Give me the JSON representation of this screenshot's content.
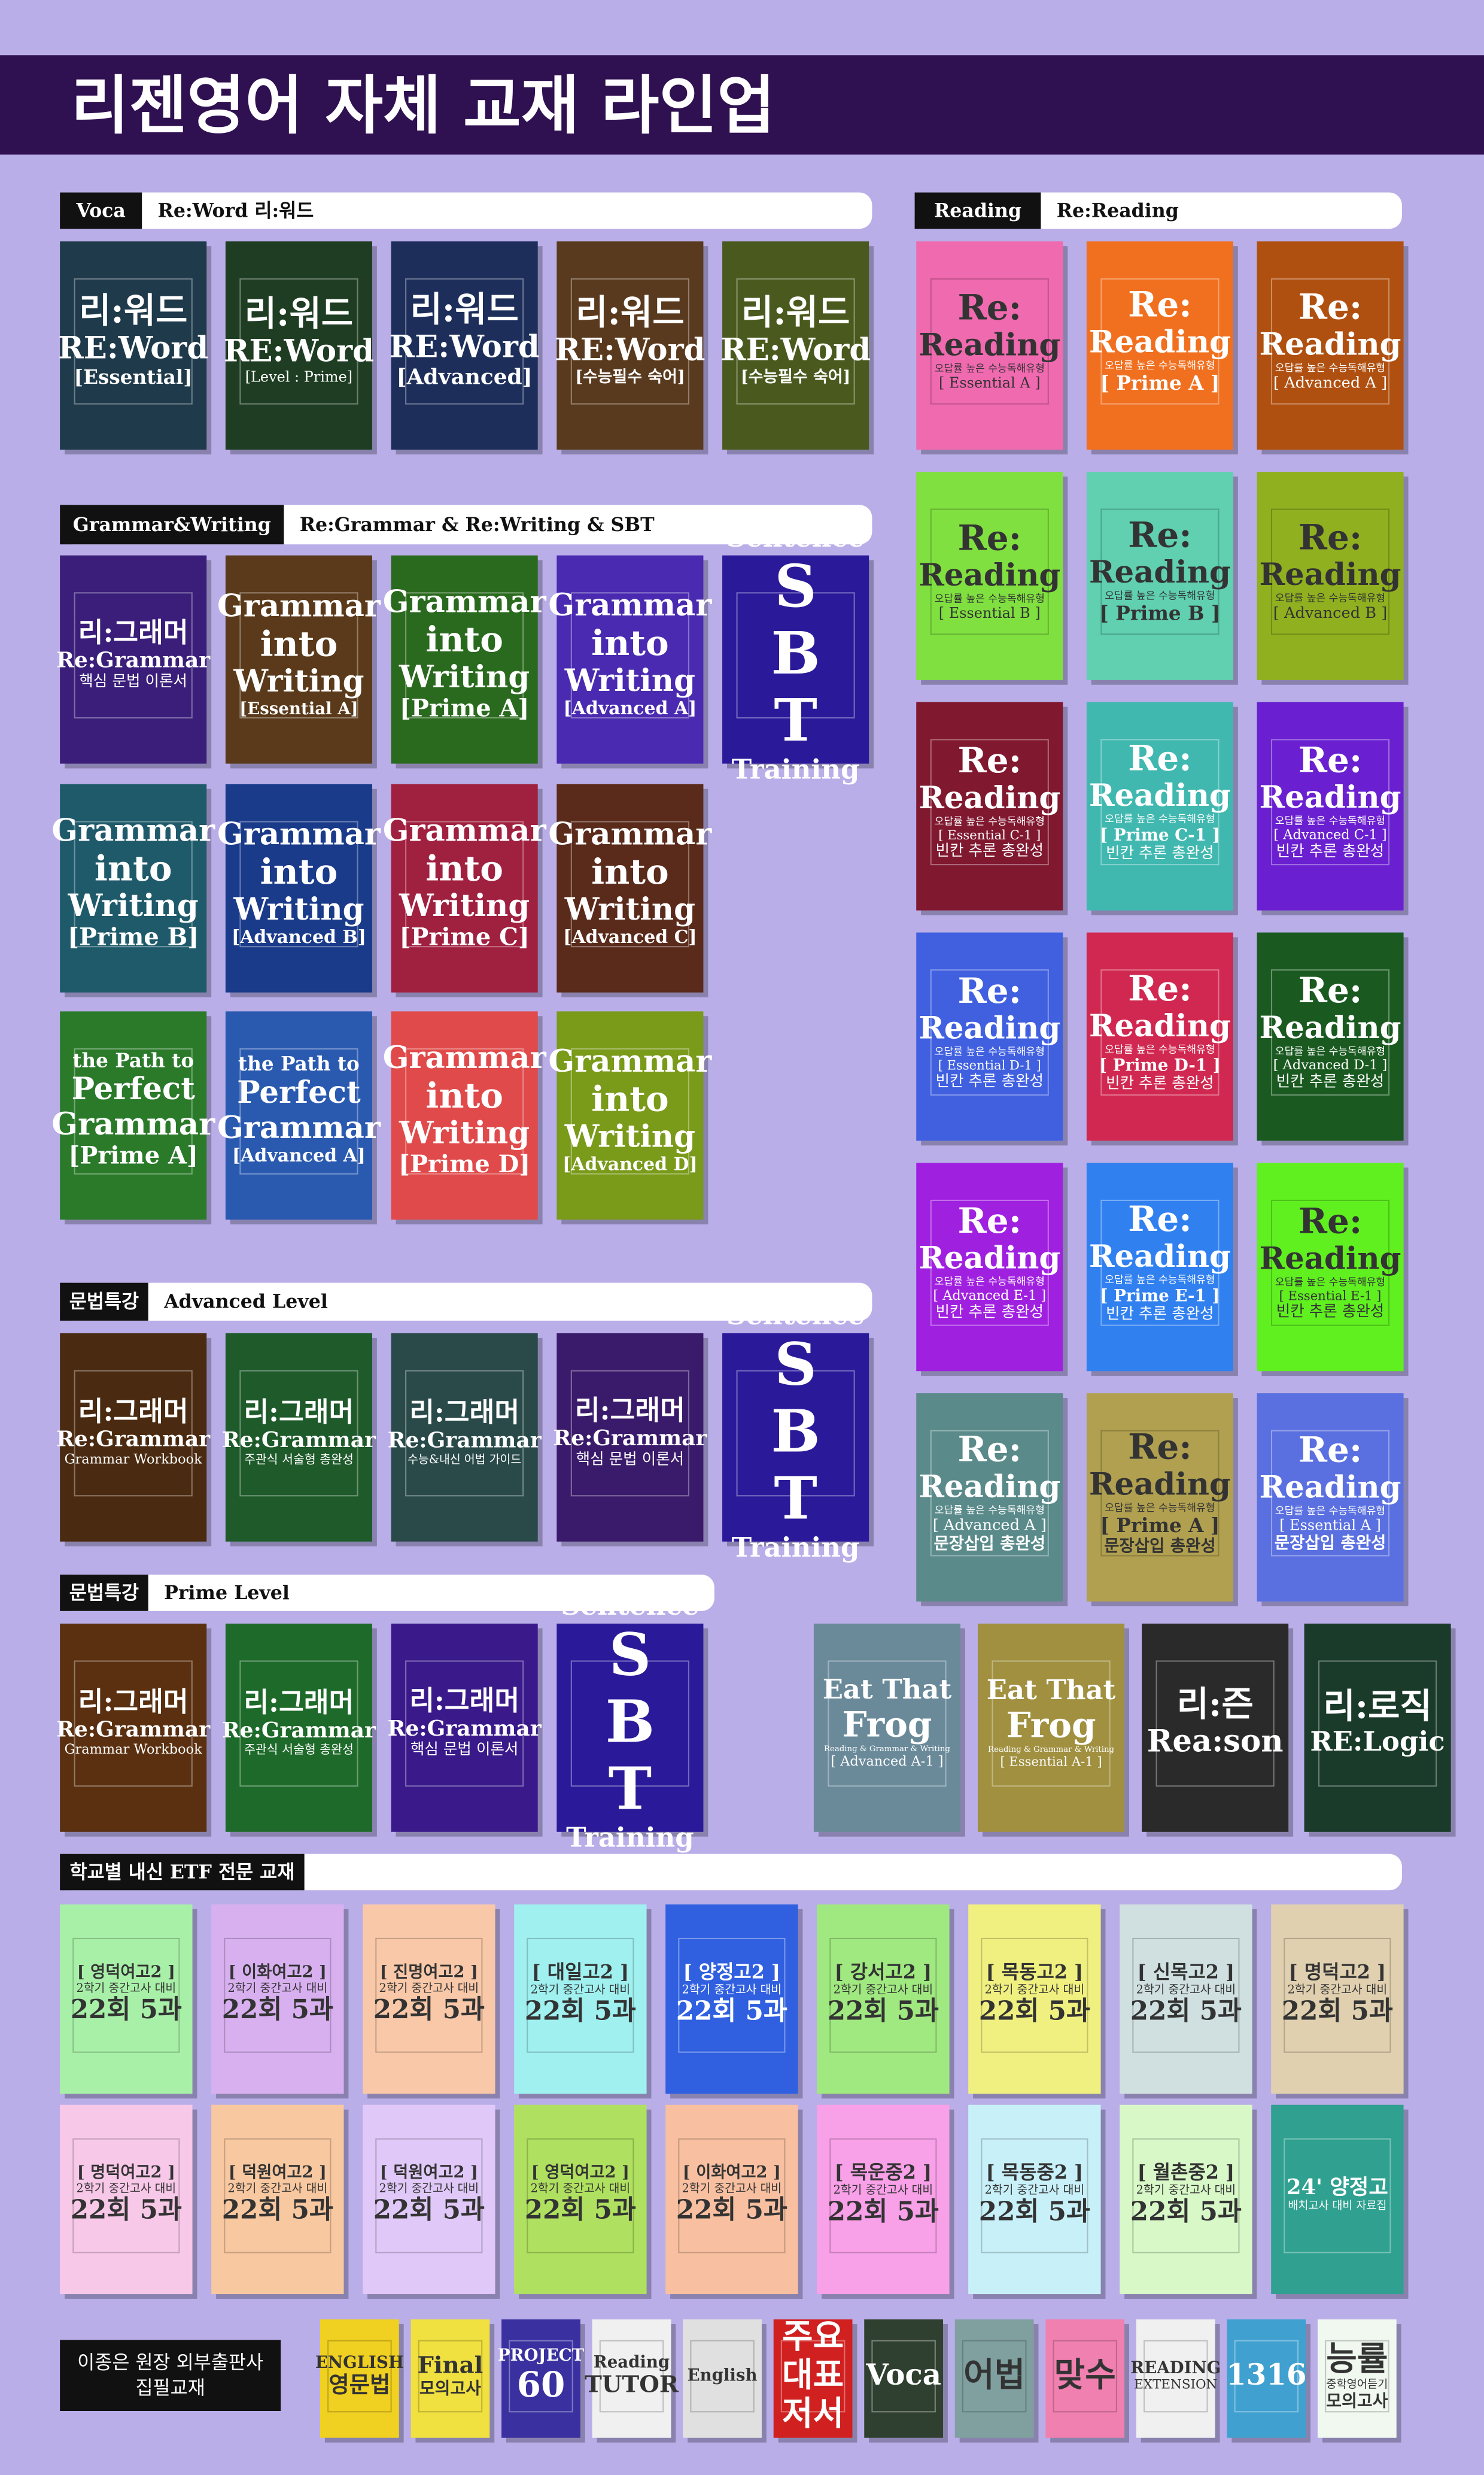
{
  "header": {
    "title": "리젠영어 자체 교재 라인업"
  },
  "sections": [
    {
      "tag": "Voca",
      "label": "Re:Word 리:워드",
      "books": [
        {
          "color": "#1f3a4a",
          "lines": [
            "리:워드",
            "RE:Word",
            "[Essential]"
          ]
        },
        {
          "color": "#1e3d22",
          "lines": [
            "리:워드",
            "RE:Word",
            "[Level : Prime]"
          ]
        },
        {
          "color": "#1d2e5a",
          "lines": [
            "리:워드",
            "RE:Word",
            "[Advanced]"
          ]
        },
        {
          "color": "#5a3a1e",
          "lines": [
            "리:워드",
            "RE:Word",
            "[수능필수 숙어]"
          ]
        },
        {
          "color": "#4a5a1e",
          "lines": [
            "리:워드",
            "RE:Word",
            "[수능필수 숙어]"
          ]
        }
      ]
    },
    {
      "tag": "Grammar&Writing",
      "label": "Re:Grammar & Re:Writing & SBT",
      "books": [
        {
          "color": "#3a1e7a",
          "lines": [
            "리:그래머",
            "Re:Grammar",
            "핵심 문법 이론서"
          ]
        },
        {
          "color": "#5a3a1a",
          "lines": [
            "Grammar",
            "into",
            "Writing",
            "[Essential A]"
          ]
        },
        {
          "color": "#2a6a1e",
          "lines": [
            "Grammar",
            "into",
            "Writing",
            "[Prime A]"
          ]
        },
        {
          "color": "#4a2ab0",
          "lines": [
            "Grammar",
            "into",
            "Writing",
            "[Advanced A]"
          ]
        },
        {
          "color": "#2a1a9a",
          "lines": [
            "Sentence",
            "S",
            "B",
            "T",
            "Training"
          ]
        },
        {
          "color": "#1f5a6a",
          "lines": [
            "Grammar",
            "into",
            "Writing",
            "[Prime B]"
          ]
        },
        {
          "color": "#1a3a8a",
          "lines": [
            "Grammar",
            "into",
            "Writing",
            "[Advanced B]"
          ]
        },
        {
          "color": "#a02040",
          "lines": [
            "Grammar",
            "into",
            "Writing",
            "[Prime C]"
          ]
        },
        {
          "color": "#5a2a1a",
          "lines": [
            "Grammar",
            "into",
            "Writing",
            "[Advanced C]"
          ]
        },
        {
          "color": "#2a7a2a",
          "lines": [
            "the Path to",
            "Perfect",
            "Grammar",
            "[Prime A]"
          ]
        },
        {
          "color": "#2a5ab0",
          "lines": [
            "the Path to",
            "Perfect",
            "Grammar",
            "[Advanced A]"
          ]
        },
        {
          "color": "#e04a4a",
          "lines": [
            "Grammar",
            "into",
            "Writing",
            "[Prime D]"
          ]
        },
        {
          "color": "#7a9a1a",
          "lines": [
            "Grammar",
            "into",
            "Writing",
            "[Advanced D]"
          ]
        }
      ]
    },
    {
      "tag": "문법특강",
      "label": "Advanced Level",
      "books": [
        {
          "color": "#4a2a10",
          "lines": [
            "리:그래머",
            "Re:Grammar",
            "Grammar Workbook"
          ]
        },
        {
          "color": "#1e5a2a",
          "lines": [
            "리:그래머",
            "Re:Grammar",
            "주관식 서술형 총완성"
          ]
        },
        {
          "color": "#2a4a4a",
          "lines": [
            "리:그래머",
            "Re:Grammar",
            "수능&내신 어법 가이드"
          ]
        },
        {
          "color": "#3a1a6a",
          "lines": [
            "리:그래머",
            "Re:Grammar",
            "핵심 문법 이론서"
          ]
        },
        {
          "color": "#2a1a9a",
          "lines": [
            "Sentence",
            "S",
            "B",
            "T",
            "Training"
          ]
        }
      ]
    },
    {
      "tag": "문법특강",
      "label": "Prime Level",
      "books": [
        {
          "color": "#5a3010",
          "lines": [
            "리:그래머",
            "Re:Grammar",
            "Grammar Workbook"
          ]
        },
        {
          "color": "#1e6a2a",
          "lines": [
            "리:그래머",
            "Re:Grammar",
            "주관식 서술형 총완성"
          ]
        },
        {
          "color": "#3a1a8a",
          "lines": [
            "리:그래머",
            "Re:Grammar",
            "핵심 문법 이론서"
          ]
        },
        {
          "color": "#2a1a9a",
          "lines": [
            "Sentence",
            "S",
            "B",
            "T",
            "Training"
          ]
        }
      ]
    },
    {
      "tag": "Reading",
      "label": "Re:Reading",
      "books": [
        {
          "color": "#f06ab0",
          "lines": [
            "Re:",
            "Reading",
            "오답률 높은 수능독해유형",
            "[ Essential A ]"
          ]
        },
        {
          "color": "#f07020",
          "lines": [
            "Re:",
            "Reading",
            "오답률 높은 수능독해유형",
            "[ Prime A ]"
          ]
        },
        {
          "color": "#b05010",
          "lines": [
            "Re:",
            "Reading",
            "오답률 높은 수능독해유형",
            "[ Advanced A ]"
          ]
        },
        {
          "color": "#80e040",
          "lines": [
            "Re:",
            "Reading",
            "오답률 높은 수능독해유형",
            "[ Essential B ]"
          ]
        },
        {
          "color": "#60d0b0",
          "lines": [
            "Re:",
            "Reading",
            "오답률 높은 수능독해유형",
            "[ Prime B ]"
          ]
        },
        {
          "color": "#90b020",
          "lines": [
            "Re:",
            "Reading",
            "오답률 높은 수능독해유형",
            "[ Advanced B ]"
          ]
        },
        {
          "color": "#801830",
          "lines": [
            "Re:",
            "Reading",
            "오답률 높은 수능독해유형",
            "[ Essential C-1 ]",
            "빈칸 추론 총완성"
          ]
        },
        {
          "color": "#40b8b0",
          "lines": [
            "Re:",
            "Reading",
            "오답률 높은 수능독해유형",
            "[ Prime C-1 ]",
            "빈칸 추론 총완성"
          ]
        },
        {
          "color": "#6a20d0",
          "lines": [
            "Re:",
            "Reading",
            "오답률 높은 수능독해유형",
            "[ Advanced C-1 ]",
            "빈칸 추론 총완성"
          ]
        },
        {
          "color": "#4060e0",
          "lines": [
            "Re:",
            "Reading",
            "오답률 높은 수능독해유형",
            "[ Essential D-1 ]",
            "빈칸 추론 총완성"
          ]
        },
        {
          "color": "#d02850",
          "lines": [
            "Re:",
            "Reading",
            "오답률 높은 수능독해유형",
            "[ Prime D-1 ]",
            "빈칸 추론 총완성"
          ]
        },
        {
          "color": "#1a5a20",
          "lines": [
            "Re:",
            "Reading",
            "오답률 높은 수능독해유형",
            "[ Advanced D-1 ]",
            "빈칸 추론 총완성"
          ]
        },
        {
          "color": "#a020e0",
          "lines": [
            "Re:",
            "Reading",
            "오답률 높은 수능독해유형",
            "[ Advanced E-1 ]",
            "빈칸 추론 총완성"
          ]
        },
        {
          "color": "#3080f0",
          "lines": [
            "Re:",
            "Reading",
            "오답률 높은 수능독해유형",
            "[ Prime E-1 ]",
            "빈칸 추론 총완성"
          ]
        },
        {
          "color": "#60f020",
          "lines": [
            "Re:",
            "Reading",
            "오답률 높은 수능독해유형",
            "[ Essential E-1 ]",
            "빈칸 추론 총완성"
          ]
        },
        {
          "color": "#5a8a8a",
          "lines": [
            "Re:",
            "Reading",
            "오답률 높은 수능독해유형",
            "[ Advanced A ]",
            "문장삽입 총완성"
          ]
        },
        {
          "color": "#b0a050",
          "lines": [
            "Re:",
            "Reading",
            "오답률 높은 수능독해유형",
            "[ Prime A ]",
            "문장삽입 총완성"
          ]
        },
        {
          "color": "#5a70e0",
          "lines": [
            "Re:",
            "Reading",
            "오답률 높은 수능독해유형",
            "[ Essential A ]",
            "문장삽입 총완성"
          ]
        }
      ]
    },
    {
      "books": [
        {
          "color": "#6a8a9a",
          "lines": [
            "Eat That",
            "Frog",
            "Reading & Grammar & Writing",
            "[ Advanced A-1 ]"
          ]
        },
        {
          "color": "#a09040",
          "lines": [
            "Eat That",
            "Frog",
            "Reading & Grammar & Writing",
            "[ Essential A-1 ]"
          ]
        },
        {
          "color": "#2a2a2a",
          "lines": [
            "리:즌",
            "Rea:son"
          ]
        },
        {
          "color": "#1a3a2a",
          "lines": [
            "리:로직",
            "RE:Logic"
          ]
        }
      ]
    },
    {
      "tag": "학교별 내신 ETF 전문 교재",
      "books": [
        {
          "color": "#a8f0a8",
          "lines": [
            "[ 영덕여고2 ]",
            "2학기 중간고사 대비",
            "22회 5과"
          ]
        },
        {
          "color": "#d8b0f0",
          "lines": [
            "[ 이화여고2 ]",
            "2학기 중간고사 대비",
            "22회 5과"
          ]
        },
        {
          "color": "#f8c8a8",
          "lines": [
            "[ 진명여고2 ]",
            "2학기 중간고사 대비",
            "22회 5과"
          ]
        },
        {
          "color": "#a0f0f0",
          "lines": [
            "[ 대일고2 ]",
            "2학기 중간고사 대비",
            "22회 5과"
          ]
        },
        {
          "color": "#3060e0",
          "lines": [
            "[ 양정고2 ]",
            "2학기 중간고사 대비",
            "22회 5과"
          ]
        },
        {
          "color": "#a0e880",
          "lines": [
            "[ 강서고2 ]",
            "2학기 중간고사 대비",
            "22회 5과"
          ]
        },
        {
          "color": "#f0f080",
          "lines": [
            "[ 목동고2 ]",
            "2학기 중간고사 대비",
            "22회 5과"
          ]
        },
        {
          "color": "#d0e0e0",
          "lines": [
            "[ 신목고2 ]",
            "2학기 중간고사 대비",
            "22회 5과"
          ]
        },
        {
          "color": "#e0d0b0",
          "lines": [
            "[ 명덕고2 ]",
            "2학기 중간고사 대비",
            "22회 5과"
          ]
        },
        {
          "color": "#f8c8e8",
          "lines": [
            "[ 명덕여고2 ]",
            "2학기 중간고사 대비",
            "22회 5과"
          ]
        },
        {
          "color": "#f8c8a0",
          "lines": [
            "[ 덕원여고2 ]",
            "2학기 중간고사 대비",
            "22회 5과"
          ]
        },
        {
          "color": "#e0c8f8",
          "lines": [
            "[ 덕원여고2 ]",
            "2학기 중간고사 대비",
            "22회 5과"
          ]
        },
        {
          "color": "#b0e060",
          "lines": [
            "[ 영덕여고2 ]",
            "2학기 중간고사 대비",
            "22회 5과"
          ]
        },
        {
          "color": "#f8c0a0",
          "lines": [
            "[ 이화여고2 ]",
            "2학기 중간고사 대비",
            "22회 5과"
          ]
        },
        {
          "color": "#f8a0e8",
          "lines": [
            "[ 목운중2 ]",
            "2학기 중간고사 대비",
            "22회 5과"
          ]
        },
        {
          "color": "#c8f0f8",
          "lines": [
            "[ 목동중2 ]",
            "2학기 중간고사 대비",
            "22회 5과"
          ]
        },
        {
          "color": "#d8f8c8",
          "lines": [
            "[ 월촌중2 ]",
            "2학기 중간고사 대비",
            "22회 5과"
          ]
        },
        {
          "color": "#30a090",
          "lines": [
            "24' 양정고",
            "배치고사 대비 자료집"
          ]
        }
      ]
    },
    {
      "note": [
        "이종은 원장 외부출판사",
        "집필교재"
      ],
      "books": [
        {
          "color": "#f0d020",
          "lines": [
            "ENGLISH",
            "영문법"
          ]
        },
        {
          "color": "#f0e040",
          "lines": [
            "Final",
            "모의고사"
          ]
        },
        {
          "color": "#3a30a0",
          "lines": [
            "PROJECT",
            "60"
          ]
        },
        {
          "color": "#f0f0f0",
          "lines": [
            "Reading",
            "TUTOR"
          ]
        },
        {
          "color": "#e0e0e0",
          "lines": [
            "English"
          ]
        },
        {
          "color": "#d02020",
          "lines": [
            "주요",
            "대표",
            "저서"
          ]
        },
        {
          "color": "#304030",
          "lines": [
            "Voca"
          ]
        },
        {
          "color": "#80a0a0",
          "lines": [
            "어법"
          ]
        },
        {
          "color": "#f080b0",
          "lines": [
            "맞수"
          ]
        },
        {
          "color": "#f0f0f0",
          "lines": [
            "READING",
            "EXTENSION"
          ]
        },
        {
          "color": "#40a0d0",
          "lines": [
            "1316"
          ]
        },
        {
          "color": "#f0f8f0",
          "lines": [
            "능률",
            "중학영어듣기",
            "모의고사"
          ]
        }
      ]
    }
  ]
}
